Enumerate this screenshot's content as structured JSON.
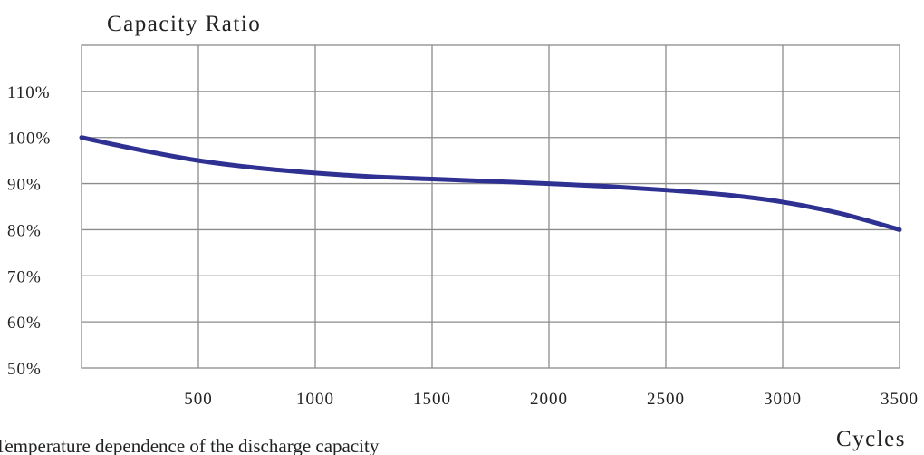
{
  "chart_data": {
    "type": "line",
    "ylabel": "Capacity Ratio",
    "xlabel": "Cycles",
    "caption": "Temperature dependence of the discharge capacity",
    "xlim": [
      0,
      3500
    ],
    "ylim": [
      50,
      120
    ],
    "x_ticks": [
      500,
      1000,
      1500,
      2000,
      2500,
      3000,
      3500
    ],
    "x_tick_labels": [
      "500",
      "1000",
      "1500",
      "2000",
      "2500",
      "3000",
      "3500"
    ],
    "y_ticks": [
      50,
      60,
      70,
      80,
      90,
      100,
      110
    ],
    "y_tick_labels": [
      "50%",
      "60%",
      "70%",
      "80%",
      "90%",
      "100%",
      "110%"
    ],
    "grid": true,
    "colors": {
      "series": "#2e3192",
      "grid": "#8c8c8c"
    },
    "series": [
      {
        "x": [
          0,
          250,
          500,
          750,
          1000,
          1250,
          1500,
          1750,
          2000,
          2250,
          2500,
          2750,
          3000,
          3250,
          3500
        ],
        "values": [
          100,
          97.3,
          95.0,
          93.4,
          92.3,
          91.5,
          91.0,
          90.5,
          90.0,
          89.4,
          88.6,
          87.6,
          86.0,
          83.5,
          80.0
        ]
      }
    ]
  }
}
